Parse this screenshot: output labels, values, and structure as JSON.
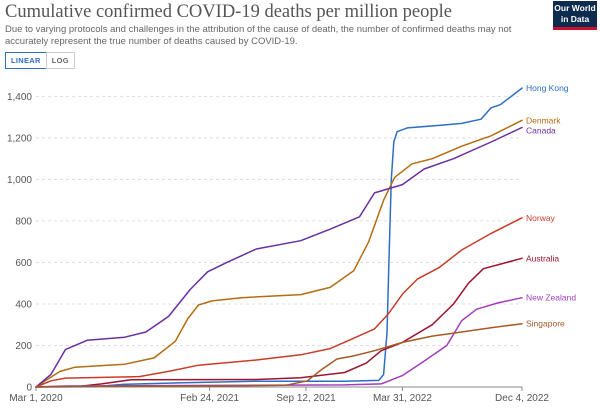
{
  "header": {
    "title": "Cumulative confirmed COVID-19 deaths per million people",
    "subtitle": "Due to varying protocols and challenges in the attribution of the cause of death, the number of confirmed deaths may not accurately represent the true number of deaths caused by COVID-19.",
    "logo_line1": "Our World",
    "logo_line2": "in Data"
  },
  "scale_toggle": {
    "linear_label": "LINEAR",
    "log_label": "LOG",
    "selected": "linear"
  },
  "colors": {
    "Hong Kong": "#2c6ec3",
    "Denmark": "#b46d11",
    "Canada": "#6a2fa0",
    "Norway": "#c83c28",
    "Australia": "#9c1431",
    "New Zealand": "#a23dbd",
    "Singapore": "#a55a26",
    "grid": "#dddddd",
    "axis": "#888888"
  },
  "chart_data": {
    "type": "line",
    "title": "Cumulative confirmed COVID-19 deaths per million people",
    "xlabel": "",
    "ylabel": "",
    "xlim": [
      "2020-03-01",
      "2022-12-04"
    ],
    "ylim": [
      0,
      1450
    ],
    "x_ticks": [
      "Mar 1, 2020",
      "Feb 24, 2021",
      "Sep 12, 2021",
      "Mar 31, 2022",
      "Dec 4, 2022"
    ],
    "y_ticks": [
      0,
      200,
      400,
      600,
      800,
      1000,
      1200,
      1400
    ],
    "grid": true,
    "legend": "labels at line ends (right)",
    "series": [
      {
        "name": "Hong Kong",
        "points": [
          [
            "2020-03-01",
            0
          ],
          [
            "2020-07-01",
            2
          ],
          [
            "2020-09-01",
            13
          ],
          [
            "2021-01-01",
            20
          ],
          [
            "2021-06-01",
            28
          ],
          [
            "2021-12-01",
            28
          ],
          [
            "2022-02-10",
            32
          ],
          [
            "2022-02-20",
            60
          ],
          [
            "2022-02-27",
            260
          ],
          [
            "2022-03-03",
            600
          ],
          [
            "2022-03-08",
            1000
          ],
          [
            "2022-03-13",
            1180
          ],
          [
            "2022-03-20",
            1230
          ],
          [
            "2022-04-10",
            1248
          ],
          [
            "2022-06-15",
            1260
          ],
          [
            "2022-08-01",
            1270
          ],
          [
            "2022-09-10",
            1290
          ],
          [
            "2022-10-01",
            1345
          ],
          [
            "2022-10-20",
            1360
          ],
          [
            "2022-12-04",
            1440
          ]
        ]
      },
      {
        "name": "Denmark",
        "points": [
          [
            "2020-03-01",
            0
          ],
          [
            "2020-03-20",
            30
          ],
          [
            "2020-04-20",
            75
          ],
          [
            "2020-05-20",
            95
          ],
          [
            "2020-09-01",
            110
          ],
          [
            "2020-11-01",
            140
          ],
          [
            "2020-12-15",
            220
          ],
          [
            "2021-01-10",
            330
          ],
          [
            "2021-02-01",
            395
          ],
          [
            "2021-03-01",
            415
          ],
          [
            "2021-05-01",
            430
          ],
          [
            "2021-09-01",
            445
          ],
          [
            "2021-11-01",
            480
          ],
          [
            "2021-12-20",
            560
          ],
          [
            "2022-01-20",
            700
          ],
          [
            "2022-02-20",
            900
          ],
          [
            "2022-03-15",
            1010
          ],
          [
            "2022-04-20",
            1075
          ],
          [
            "2022-06-01",
            1100
          ],
          [
            "2022-08-01",
            1160
          ],
          [
            "2022-10-01",
            1210
          ],
          [
            "2022-12-04",
            1285
          ]
        ]
      },
      {
        "name": "Canada",
        "points": [
          [
            "2020-03-01",
            0
          ],
          [
            "2020-04-01",
            60
          ],
          [
            "2020-05-01",
            180
          ],
          [
            "2020-06-15",
            225
          ],
          [
            "2020-09-01",
            240
          ],
          [
            "2020-10-15",
            265
          ],
          [
            "2020-12-01",
            340
          ],
          [
            "2021-01-15",
            470
          ],
          [
            "2021-02-20",
            555
          ],
          [
            "2021-04-01",
            600
          ],
          [
            "2021-06-01",
            665
          ],
          [
            "2021-09-01",
            705
          ],
          [
            "2021-11-01",
            760
          ],
          [
            "2022-01-01",
            820
          ],
          [
            "2022-02-01",
            935
          ],
          [
            "2022-03-31",
            975
          ],
          [
            "2022-05-15",
            1050
          ],
          [
            "2022-07-15",
            1100
          ],
          [
            "2022-10-01",
            1180
          ],
          [
            "2022-12-04",
            1250
          ]
        ]
      },
      {
        "name": "Norway",
        "points": [
          [
            "2020-03-01",
            0
          ],
          [
            "2020-04-01",
            30
          ],
          [
            "2020-05-01",
            43
          ],
          [
            "2020-10-01",
            50
          ],
          [
            "2020-12-01",
            75
          ],
          [
            "2021-02-01",
            105
          ],
          [
            "2021-06-01",
            130
          ],
          [
            "2021-09-01",
            155
          ],
          [
            "2021-11-01",
            185
          ],
          [
            "2021-12-15",
            230
          ],
          [
            "2022-02-01",
            280
          ],
          [
            "2022-03-01",
            350
          ],
          [
            "2022-04-01",
            450
          ],
          [
            "2022-05-01",
            520
          ],
          [
            "2022-06-15",
            575
          ],
          [
            "2022-08-01",
            660
          ],
          [
            "2022-10-01",
            740
          ],
          [
            "2022-12-04",
            815
          ]
        ]
      },
      {
        "name": "Australia",
        "points": [
          [
            "2020-03-01",
            0
          ],
          [
            "2020-06-01",
            4
          ],
          [
            "2020-07-15",
            15
          ],
          [
            "2020-09-15",
            35
          ],
          [
            "2021-06-01",
            36
          ],
          [
            "2021-09-01",
            45
          ],
          [
            "2021-12-01",
            70
          ],
          [
            "2022-01-15",
            115
          ],
          [
            "2022-02-15",
            175
          ],
          [
            "2022-03-31",
            215
          ],
          [
            "2022-06-01",
            300
          ],
          [
            "2022-07-15",
            400
          ],
          [
            "2022-08-15",
            500
          ],
          [
            "2022-09-15",
            570
          ],
          [
            "2022-12-04",
            620
          ]
        ]
      },
      {
        "name": "New Zealand",
        "points": [
          [
            "2020-03-01",
            0
          ],
          [
            "2020-05-01",
            5
          ],
          [
            "2021-12-01",
            10
          ],
          [
            "2022-02-15",
            15
          ],
          [
            "2022-03-31",
            55
          ],
          [
            "2022-05-15",
            125
          ],
          [
            "2022-07-01",
            200
          ],
          [
            "2022-08-01",
            320
          ],
          [
            "2022-09-01",
            375
          ],
          [
            "2022-10-15",
            405
          ],
          [
            "2022-12-04",
            430
          ]
        ]
      },
      {
        "name": "Singapore",
        "points": [
          [
            "2020-03-01",
            0
          ],
          [
            "2020-04-15",
            3
          ],
          [
            "2021-04-01",
            5
          ],
          [
            "2021-08-01",
            8
          ],
          [
            "2021-09-15",
            30
          ],
          [
            "2021-10-15",
            85
          ],
          [
            "2021-11-15",
            135
          ],
          [
            "2021-12-20",
            150
          ],
          [
            "2022-02-01",
            175
          ],
          [
            "2022-03-31",
            215
          ],
          [
            "2022-06-01",
            245
          ],
          [
            "2022-08-01",
            265
          ],
          [
            "2022-10-01",
            285
          ],
          [
            "2022-12-04",
            305
          ]
        ]
      }
    ]
  }
}
